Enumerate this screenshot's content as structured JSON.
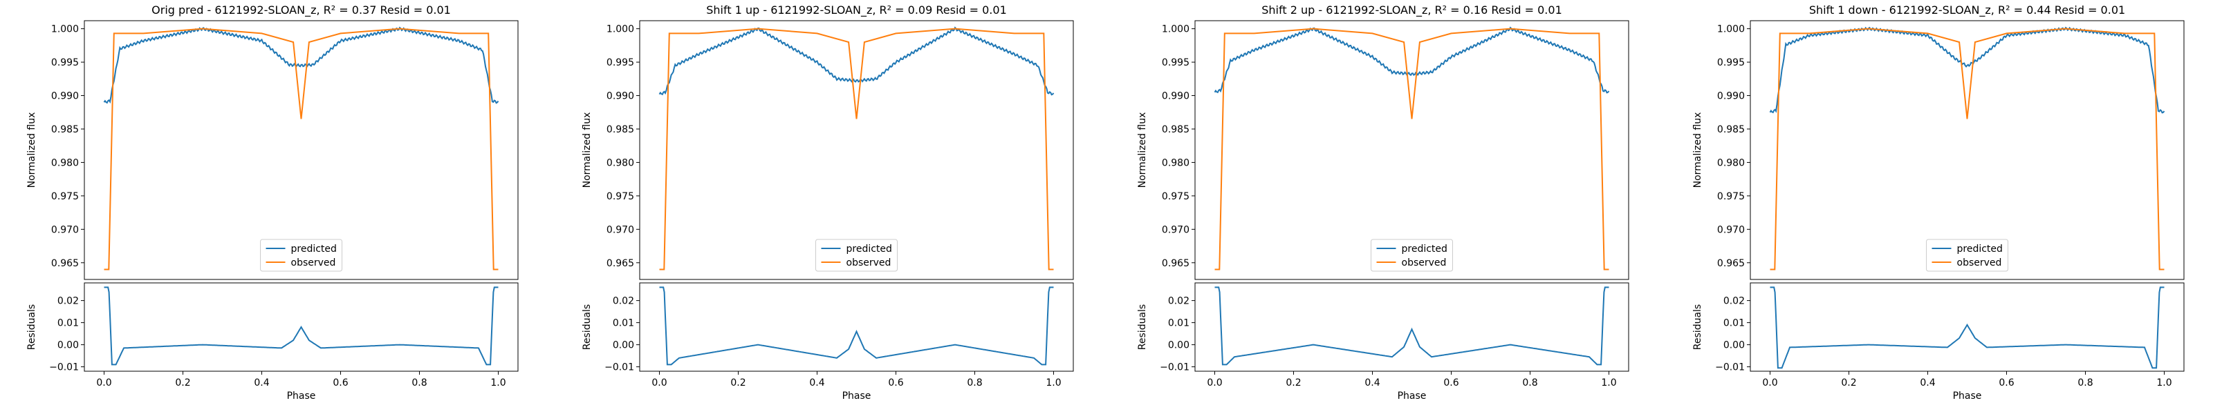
{
  "figure": {
    "panels": [
      {
        "title": "Orig pred - 6121992-SLOAN_z, R² = 0.37 Resid = 0.01",
        "pred_shift": 0.0
      },
      {
        "title": "Shift 1 up - 6121992-SLOAN_z, R² = 0.09 Resid = 0.01",
        "pred_shift": 1.0
      },
      {
        "title": "Shift 2 up - 6121992-SLOAN_z, R² = 0.16 Resid = 0.01",
        "pred_shift": 2.0
      },
      {
        "title": "Shift 1 down - 6121992-SLOAN_z, R² = 0.44 Resid = 0.01",
        "pred_shift": -1.0
      }
    ]
  },
  "colors": {
    "predicted": "#1f77b4",
    "observed": "#ff7f0e"
  },
  "chart_data": [
    {
      "type": "line",
      "title": "Orig pred - 6121992-SLOAN_z, R² = 0.37 Resid = 0.01",
      "xlabel": "Phase",
      "ylabel": "Normalized flux",
      "xlim": [
        -0.05,
        1.05
      ],
      "ylim": [
        0.9625,
        1.0012
      ],
      "xticks": [
        "0.0",
        "0.2",
        "0.4",
        "0.6",
        "0.8",
        "1.0"
      ],
      "yticks": [
        "0.965",
        "0.970",
        "0.975",
        "0.980",
        "0.985",
        "0.990",
        "0.995",
        "1.000"
      ],
      "legend": {
        "location": "lower center",
        "entries": [
          "predicted",
          "observed"
        ]
      },
      "series": [
        {
          "name": "predicted",
          "x": [
            0.0,
            0.015,
            0.04,
            0.1,
            0.25,
            0.4,
            0.47,
            0.5,
            0.53,
            0.6,
            0.75,
            0.9,
            0.96,
            0.985,
            1.0
          ],
          "y": [
            0.989,
            0.9892,
            0.997,
            0.9982,
            1.0,
            0.9982,
            0.9946,
            0.9945,
            0.9946,
            0.9982,
            1.0,
            0.9982,
            0.9968,
            0.9892,
            0.989
          ]
        },
        {
          "name": "observed",
          "x": [
            0.0,
            0.012,
            0.025,
            0.1,
            0.25,
            0.4,
            0.48,
            0.5,
            0.52,
            0.6,
            0.75,
            0.9,
            0.975,
            0.988,
            1.0
          ],
          "y": [
            0.964,
            0.964,
            0.9993,
            0.9993,
            1.0,
            0.9993,
            0.998,
            0.9865,
            0.998,
            0.9993,
            1.0,
            0.9993,
            0.9993,
            0.964,
            0.964
          ]
        }
      ],
      "residuals": {
        "ylabel": "Residuals",
        "ylim": [
          -0.012,
          0.028
        ],
        "yticks": [
          "−0.01",
          "0.00",
          "0.01",
          "0.02"
        ],
        "x": [
          0.0,
          0.012,
          0.02,
          0.03,
          0.05,
          0.25,
          0.45,
          0.48,
          0.5,
          0.52,
          0.55,
          0.75,
          0.95,
          0.97,
          0.98,
          0.988,
          1.0
        ],
        "y": [
          0.026,
          0.026,
          -0.009,
          -0.009,
          -0.0015,
          0.0,
          -0.0015,
          0.002,
          0.008,
          0.002,
          -0.0015,
          0.0,
          -0.0015,
          -0.009,
          -0.009,
          0.026,
          0.026
        ]
      }
    },
    {
      "type": "line",
      "title": "Shift 1 up - 6121992-SLOAN_z, R² = 0.09 Resid = 0.01",
      "xlabel": "Phase",
      "ylabel": "Normalized flux",
      "xlim": [
        -0.05,
        1.05
      ],
      "ylim": [
        0.9625,
        1.0012
      ],
      "xticks": [
        "0.0",
        "0.2",
        "0.4",
        "0.6",
        "0.8",
        "1.0"
      ],
      "yticks": [
        "0.965",
        "0.970",
        "0.975",
        "0.980",
        "0.985",
        "0.990",
        "0.995",
        "1.000"
      ],
      "legend": {
        "location": "lower center",
        "entries": [
          "predicted",
          "observed"
        ]
      },
      "series": [
        {
          "name": "predicted",
          "x": [
            0.0,
            0.015,
            0.04,
            0.1,
            0.25,
            0.4,
            0.45,
            0.5,
            0.55,
            0.6,
            0.75,
            0.9,
            0.96,
            0.985,
            1.0
          ],
          "y": [
            0.9902,
            0.9905,
            0.9945,
            0.9962,
            1.0,
            0.995,
            0.9925,
            0.9922,
            0.9925,
            0.995,
            1.0,
            0.9962,
            0.9945,
            0.9905,
            0.9902
          ]
        },
        {
          "name": "observed",
          "x": [
            0.0,
            0.012,
            0.025,
            0.1,
            0.25,
            0.4,
            0.48,
            0.5,
            0.52,
            0.6,
            0.75,
            0.9,
            0.975,
            0.988,
            1.0
          ],
          "y": [
            0.964,
            0.964,
            0.9993,
            0.9993,
            1.0,
            0.9993,
            0.998,
            0.9865,
            0.998,
            0.9993,
            1.0,
            0.9993,
            0.9993,
            0.964,
            0.964
          ]
        }
      ],
      "residuals": {
        "ylabel": "Residuals",
        "ylim": [
          -0.012,
          0.028
        ],
        "yticks": [
          "−0.01",
          "0.00",
          "0.01",
          "0.02"
        ],
        "x": [
          0.0,
          0.012,
          0.02,
          0.03,
          0.05,
          0.25,
          0.45,
          0.48,
          0.5,
          0.52,
          0.55,
          0.75,
          0.95,
          0.97,
          0.98,
          0.988,
          1.0
        ],
        "y": [
          0.026,
          0.026,
          -0.009,
          -0.009,
          -0.006,
          0.0,
          -0.006,
          -0.002,
          0.006,
          -0.002,
          -0.006,
          0.0,
          -0.006,
          -0.009,
          -0.009,
          0.026,
          0.026
        ]
      }
    },
    {
      "type": "line",
      "title": "Shift 2 up - 6121992-SLOAN_z, R² = 0.16 Resid = 0.01",
      "xlabel": "Phase",
      "ylabel": "Normalized flux",
      "xlim": [
        -0.05,
        1.05
      ],
      "ylim": [
        0.9625,
        1.0012
      ],
      "xticks": [
        "0.0",
        "0.2",
        "0.4",
        "0.6",
        "0.8",
        "1.0"
      ],
      "yticks": [
        "0.965",
        "0.970",
        "0.975",
        "0.980",
        "0.985",
        "0.990",
        "0.995",
        "1.000"
      ],
      "legend": {
        "location": "lower center",
        "entries": [
          "predicted",
          "observed"
        ]
      },
      "series": [
        {
          "name": "predicted",
          "x": [
            0.0,
            0.015,
            0.04,
            0.1,
            0.25,
            0.4,
            0.45,
            0.5,
            0.55,
            0.6,
            0.75,
            0.9,
            0.96,
            0.985,
            1.0
          ],
          "y": [
            0.9905,
            0.9908,
            0.9952,
            0.9968,
            1.0,
            0.9958,
            0.9935,
            0.9932,
            0.9935,
            0.9958,
            1.0,
            0.9968,
            0.9952,
            0.9908,
            0.9905
          ]
        },
        {
          "name": "observed",
          "x": [
            0.0,
            0.012,
            0.025,
            0.1,
            0.25,
            0.4,
            0.48,
            0.5,
            0.52,
            0.6,
            0.75,
            0.9,
            0.975,
            0.988,
            1.0
          ],
          "y": [
            0.964,
            0.964,
            0.9993,
            0.9993,
            1.0,
            0.9993,
            0.998,
            0.9865,
            0.998,
            0.9993,
            1.0,
            0.9993,
            0.9993,
            0.964,
            0.964
          ]
        }
      ],
      "residuals": {
        "ylabel": "Residuals",
        "ylim": [
          -0.012,
          0.028
        ],
        "yticks": [
          "−0.01",
          "0.00",
          "0.01",
          "0.02"
        ],
        "x": [
          0.0,
          0.012,
          0.02,
          0.03,
          0.05,
          0.25,
          0.45,
          0.48,
          0.5,
          0.52,
          0.55,
          0.75,
          0.95,
          0.97,
          0.98,
          0.988,
          1.0
        ],
        "y": [
          0.026,
          0.026,
          -0.009,
          -0.009,
          -0.0055,
          0.0,
          -0.0055,
          -0.001,
          0.007,
          -0.001,
          -0.0055,
          0.0,
          -0.0055,
          -0.009,
          -0.009,
          0.026,
          0.026
        ]
      }
    },
    {
      "type": "line",
      "title": "Shift 1 down - 6121992-SLOAN_z, R² = 0.44 Resid = 0.01",
      "xlabel": "Phase",
      "ylabel": "Normalized flux",
      "xlim": [
        -0.05,
        1.05
      ],
      "ylim": [
        0.9625,
        1.0012
      ],
      "xticks": [
        "0.0",
        "0.2",
        "0.4",
        "0.6",
        "0.8",
        "1.0"
      ],
      "yticks": [
        "0.965",
        "0.970",
        "0.975",
        "0.980",
        "0.985",
        "0.990",
        "0.995",
        "1.000"
      ],
      "legend": {
        "location": "lower center",
        "entries": [
          "predicted",
          "observed"
        ]
      },
      "series": [
        {
          "name": "predicted",
          "x": [
            0.0,
            0.015,
            0.04,
            0.1,
            0.25,
            0.4,
            0.47,
            0.5,
            0.53,
            0.6,
            0.75,
            0.9,
            0.96,
            0.985,
            1.0
          ],
          "y": [
            0.9875,
            0.9878,
            0.9976,
            0.999,
            1.0,
            0.999,
            0.9955,
            0.9944,
            0.9955,
            0.999,
            1.0,
            0.999,
            0.9976,
            0.9878,
            0.9875
          ]
        },
        {
          "name": "observed",
          "x": [
            0.0,
            0.012,
            0.025,
            0.1,
            0.25,
            0.4,
            0.48,
            0.5,
            0.52,
            0.6,
            0.75,
            0.9,
            0.975,
            0.988,
            1.0
          ],
          "y": [
            0.964,
            0.964,
            0.9993,
            0.9993,
            1.0,
            0.9993,
            0.998,
            0.9865,
            0.998,
            0.9993,
            1.0,
            0.9993,
            0.9993,
            0.964,
            0.964
          ]
        }
      ],
      "residuals": {
        "ylabel": "Residuals",
        "ylim": [
          -0.012,
          0.028
        ],
        "yticks": [
          "−0.01",
          "0.00",
          "0.01",
          "0.02"
        ],
        "x": [
          0.0,
          0.012,
          0.02,
          0.03,
          0.05,
          0.25,
          0.45,
          0.48,
          0.5,
          0.52,
          0.55,
          0.75,
          0.95,
          0.97,
          0.98,
          0.988,
          1.0
        ],
        "y": [
          0.026,
          0.026,
          -0.0105,
          -0.0105,
          -0.0012,
          0.0,
          -0.0012,
          0.003,
          0.009,
          0.003,
          -0.0012,
          0.0,
          -0.0012,
          -0.0105,
          -0.0105,
          0.026,
          0.026
        ]
      }
    }
  ]
}
